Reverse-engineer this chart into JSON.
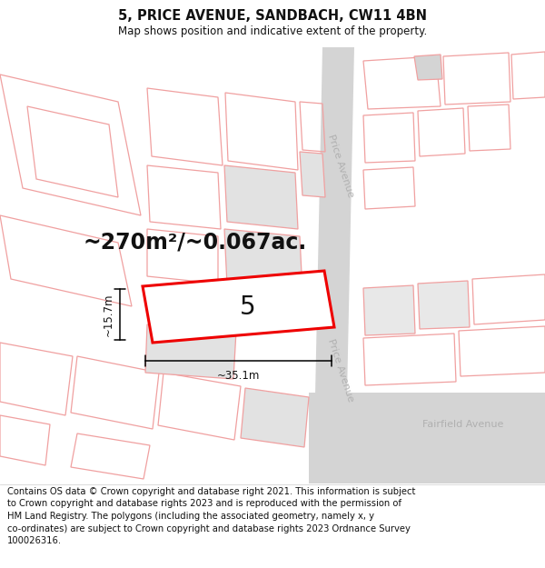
{
  "title": "5, PRICE AVENUE, SANDBACH, CW11 4BN",
  "subtitle": "Map shows position and indicative extent of the property.",
  "area_text": "~270m²/~0.067ac.",
  "dim_width": "~35.1m",
  "dim_height": "~15.7m",
  "plot_number": "5",
  "footer_lines": [
    "Contains OS data © Crown copyright and database right 2021. This information is subject",
    "to Crown copyright and database rights 2023 and is reproduced with the permission of",
    "HM Land Registry. The polygons (including the associated geometry, namely x, y",
    "co-ordinates) are subject to Crown copyright and database rights 2023 Ordnance Survey",
    "100026316."
  ],
  "bg_color": "#ffffff",
  "road_color": "#d4d4d4",
  "building_line_color": "#f0a0a0",
  "highlight_color": "#ee0000",
  "highlight_fill": "#ffffff",
  "text_color": "#111111",
  "street_label_color": "#b0b0b0",
  "title_fontsize": 10.5,
  "subtitle_fontsize": 8.5,
  "area_fontsize": 17,
  "dim_fontsize": 8.5,
  "plot_num_fontsize": 20,
  "footer_fontsize": 7.2,
  "street_fontsize": 8.0
}
